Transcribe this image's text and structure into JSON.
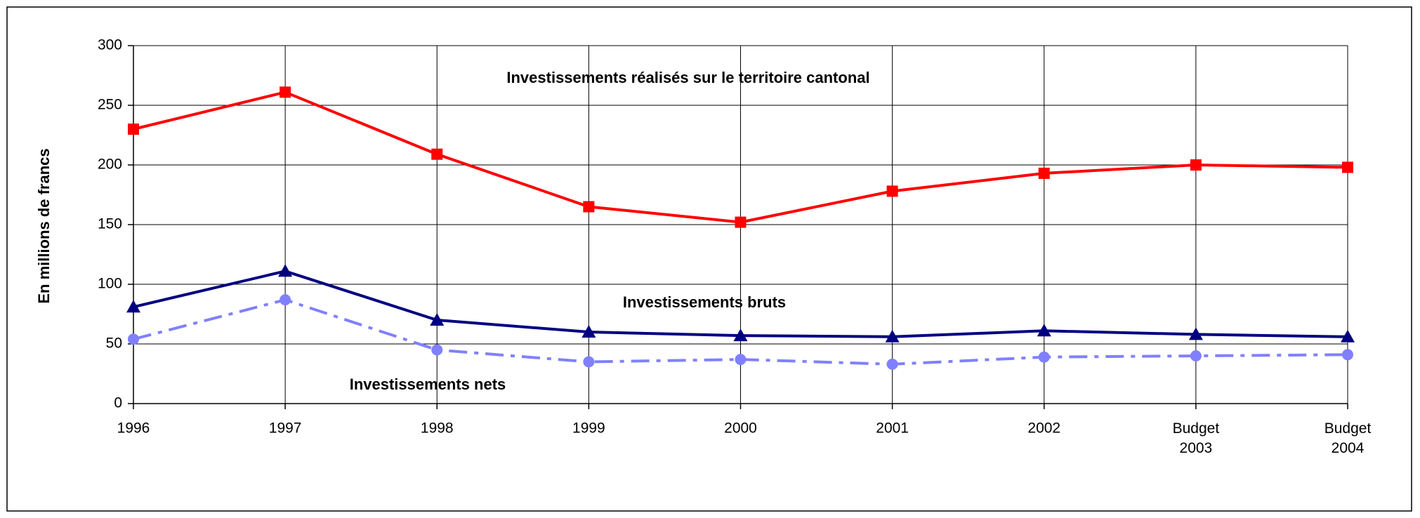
{
  "chart_data": {
    "type": "line",
    "y_label": "En  millions  de  francs",
    "categories": [
      "1996",
      "1997",
      "1998",
      "1999",
      "2000",
      "2001",
      "2002",
      "Budget 2003",
      "Budget 2004"
    ],
    "series": [
      {
        "name": "Investissements réalisés sur le territoire cantonal",
        "color": "#ff0000",
        "marker": "square",
        "linestyle": "solid",
        "values": [
          230,
          261,
          209,
          165,
          152,
          178,
          193,
          200,
          198
        ]
      },
      {
        "name": "Investissements bruts",
        "color": "#000080",
        "marker": "triangle",
        "linestyle": "solid",
        "values": [
          81,
          111,
          70,
          60,
          57,
          56,
          61,
          58,
          56
        ]
      },
      {
        "name": "Investissements nets",
        "color": "#8080ff",
        "marker": "circle",
        "linestyle": "dashdot",
        "values": [
          54,
          87,
          45,
          35,
          37,
          33,
          39,
          40,
          41
        ]
      }
    ],
    "ylim": [
      0,
      300
    ],
    "yticks": [
      0,
      50,
      100,
      150,
      200,
      250,
      300
    ],
    "grid": true
  }
}
